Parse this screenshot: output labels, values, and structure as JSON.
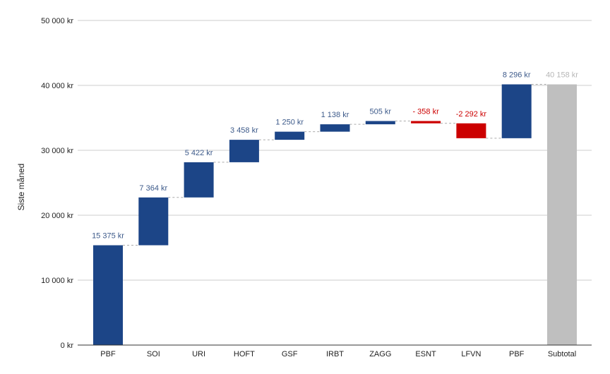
{
  "chart_data": {
    "type": "bar",
    "subtype": "waterfall",
    "ylabel": "Siste måned",
    "ylim": [
      0,
      50000
    ],
    "y_ticks": [
      0,
      10000,
      20000,
      30000,
      40000,
      50000
    ],
    "y_tick_labels": [
      "0 kr",
      "10 000 kr",
      "20 000 kr",
      "30 000 kr",
      "40 000 kr",
      "50 000 kr"
    ],
    "grid": true,
    "legend": "none",
    "colors": {
      "increase": "#1c4587",
      "decrease": "#cc0000",
      "total": "#bfbfbf",
      "increase_label": "#3d5a8a",
      "decrease_label": "#cc0000",
      "total_label": "#b7b7b7",
      "grid": "#cccccc",
      "axis": "#333333",
      "connector": "#aaaaaa"
    },
    "categories": [
      "PBF",
      "SOI",
      "URI",
      "HOFT",
      "GSF",
      "IRBT",
      "ZAGG",
      "ESNT",
      "LFVN",
      "PBF",
      "Subtotal"
    ],
    "values": [
      15375,
      7364,
      5422,
      3458,
      1250,
      1138,
      505,
      -358,
      -2292,
      8296,
      40158
    ],
    "kinds": [
      "increase",
      "increase",
      "increase",
      "increase",
      "increase",
      "increase",
      "increase",
      "decrease",
      "decrease",
      "increase",
      "total"
    ],
    "data_labels": [
      "15 375 kr",
      "7 364 kr",
      "5 422 kr",
      "3 458 kr",
      "1 250 kr",
      "1 138 kr",
      "505 kr",
      "- 358 kr",
      "-2 292 kr",
      "8 296 kr",
      "40 158 kr"
    ]
  }
}
